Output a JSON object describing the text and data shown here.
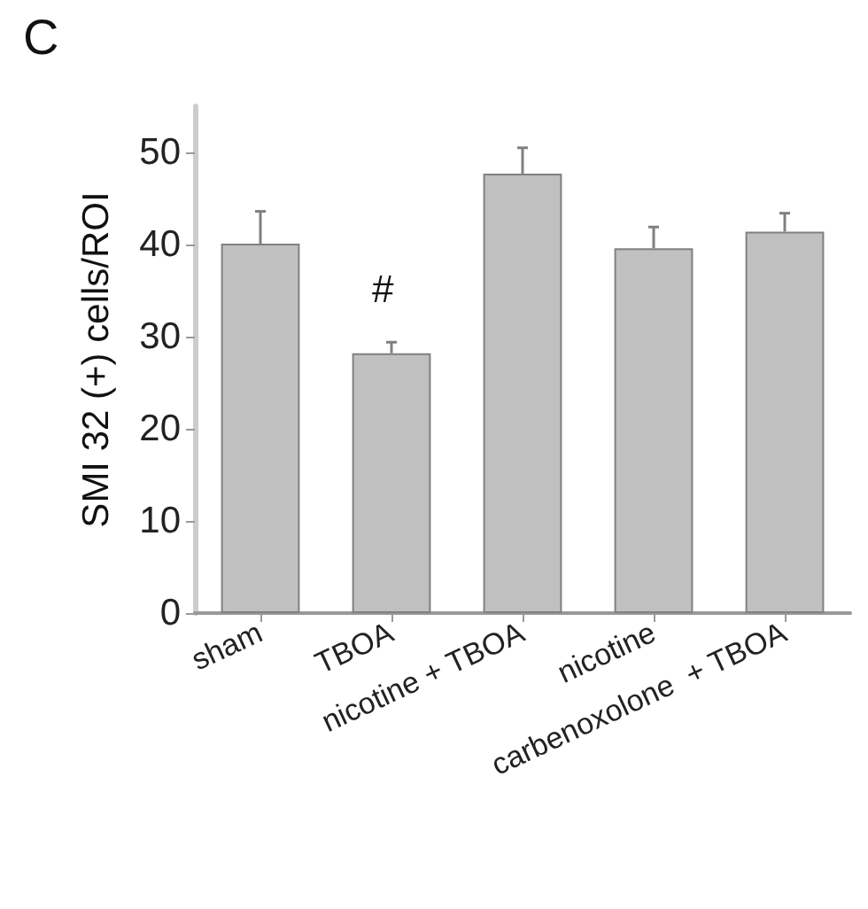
{
  "chart_data": {
    "type": "bar",
    "title": "C",
    "ylabel": "SMI 32 (+) cells/ROI",
    "categories": [
      "sham",
      "TBOA",
      "nicotine + TBOA",
      "nicotine",
      "carbenoxolone  + TBOA"
    ],
    "values": [
      40.1,
      28.2,
      47.7,
      39.6,
      41.4
    ],
    "errors": [
      [
        40.1,
        43.6
      ],
      [
        28.2,
        29.4
      ],
      [
        47.7,
        50.5
      ],
      [
        39.6,
        41.9
      ],
      [
        41.4,
        43.4
      ]
    ],
    "color": "#c0c0c0",
    "ylim": [
      0,
      55
    ],
    "yticks": [
      0,
      10,
      20,
      30,
      40,
      50
    ],
    "grid": false,
    "annotations": [
      "#"
    ]
  }
}
